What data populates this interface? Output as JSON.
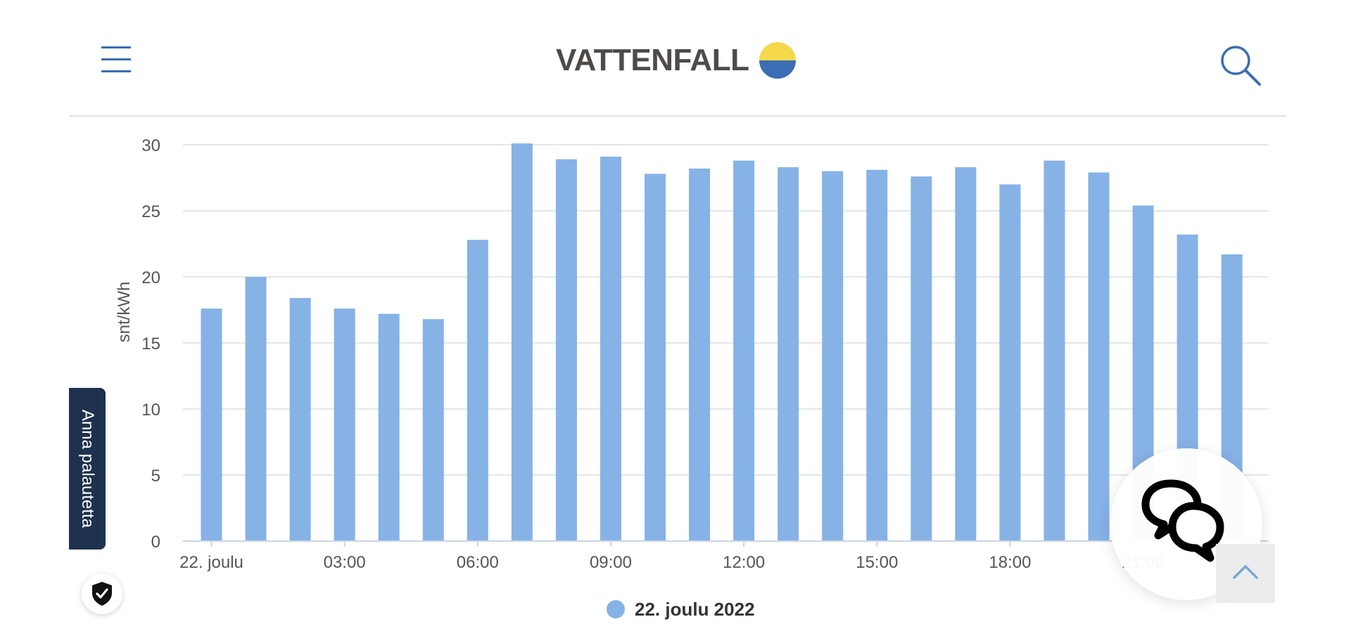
{
  "header": {
    "brand": "VATTENFALL",
    "brand_colors": {
      "sun": "#f6d84b",
      "water": "#3b6db4"
    },
    "icons": {
      "menu": "hamburger-menu-icon",
      "search": "search-icon"
    }
  },
  "feedback": {
    "label": "Anna palautetta"
  },
  "colors": {
    "bar": "#86b2e6",
    "grid": "#e4e6ea",
    "axis_text": "#555555",
    "accent": "#3b6db4",
    "feedback_bg": "#1e324e"
  },
  "chart_data": {
    "type": "bar",
    "ylabel": "snt/kWh",
    "ylim": [
      0,
      30
    ],
    "yticks": [
      0,
      5,
      10,
      15,
      20,
      25,
      30
    ],
    "x_tick_labels": [
      "22. joulu",
      "03:00",
      "06:00",
      "09:00",
      "12:00",
      "15:00",
      "18:00",
      "21:00"
    ],
    "x_tick_every": 3,
    "categories": [
      "00:00",
      "01:00",
      "02:00",
      "03:00",
      "04:00",
      "05:00",
      "06:00",
      "07:00",
      "08:00",
      "09:00",
      "10:00",
      "11:00",
      "12:00",
      "13:00",
      "14:00",
      "15:00",
      "16:00",
      "17:00",
      "18:00",
      "19:00",
      "20:00",
      "21:00",
      "22:00",
      "23:00"
    ],
    "series": [
      {
        "name": "22. joulu 2022",
        "values": [
          17.6,
          20.0,
          18.4,
          17.6,
          17.2,
          16.8,
          22.8,
          30.1,
          28.9,
          29.1,
          27.8,
          28.2,
          28.8,
          28.3,
          28.0,
          28.1,
          27.6,
          28.3,
          27.0,
          28.8,
          27.9,
          25.4,
          23.2,
          21.7
        ]
      }
    ],
    "legend": "bottom-center",
    "grid": true
  },
  "widgets": {
    "shield": "shield-check-icon",
    "chat": "chat-bubbles-icon",
    "back_to_top": "chevron-up-icon"
  }
}
